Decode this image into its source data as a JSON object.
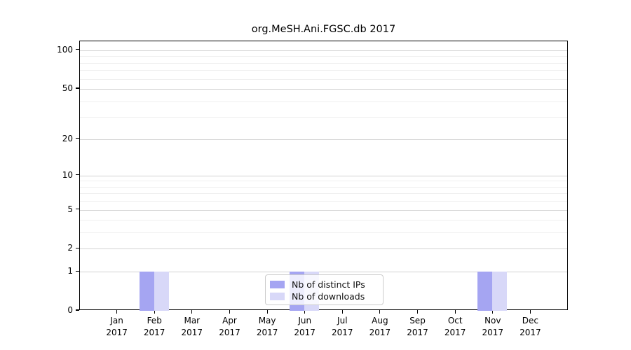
{
  "title": "org.MeSH.Ani.FGSC.db 2017",
  "colors": {
    "distinct_ips_bar": "#a5a5f2",
    "downloads_bar": "#d8d8f8",
    "grid_major": "#d2d2d2",
    "grid_minor": "#efefef",
    "axis": "#000000"
  },
  "legend": {
    "items": [
      {
        "label": "Nb of distinct IPs",
        "color": "#a5a5f2"
      },
      {
        "label": "Nb of downloads",
        "color": "#d8d8f8"
      }
    ]
  },
  "chart_data": {
    "type": "bar",
    "title": "org.MeSH.Ani.FGSC.db 2017",
    "categories": [
      "Jan",
      "Feb",
      "Mar",
      "Apr",
      "May",
      "Jun",
      "Jul",
      "Aug",
      "Sep",
      "Oct",
      "Nov",
      "Dec"
    ],
    "year": "2017",
    "series": [
      {
        "name": "Nb of distinct IPs",
        "color": "#a5a5f2",
        "values": [
          0,
          1,
          0,
          0,
          0,
          1,
          0,
          0,
          0,
          0,
          1,
          0
        ]
      },
      {
        "name": "Nb of downloads",
        "color": "#d8d8f8",
        "values": [
          0,
          1,
          0,
          0,
          0,
          1,
          0,
          0,
          0,
          0,
          1,
          0
        ]
      }
    ],
    "yscale": "log1p",
    "ylim": [
      0,
      117.5
    ],
    "yticks": [
      0,
      1,
      2,
      5,
      10,
      20,
      50,
      100
    ],
    "minor_grid_values": [
      3,
      4,
      6,
      7,
      8,
      9,
      30,
      40,
      60,
      70,
      80,
      90
    ],
    "grid": true,
    "legend_position": "lower center"
  }
}
